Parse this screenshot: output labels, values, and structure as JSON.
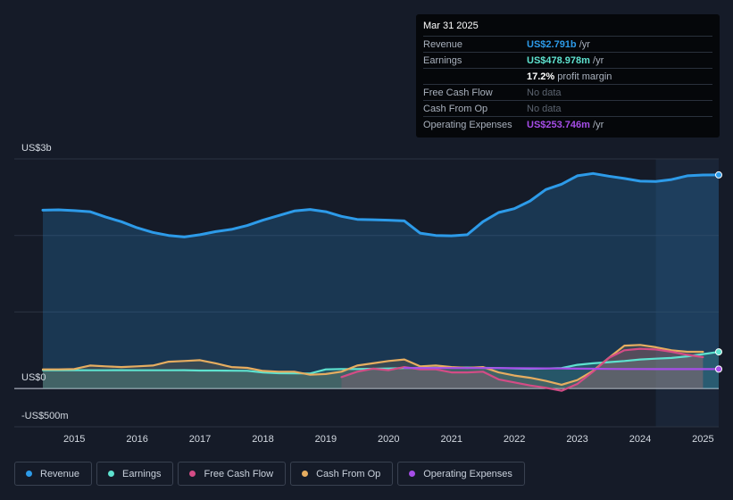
{
  "tooltip": {
    "date": "Mar 31 2025",
    "rows": [
      {
        "label": "Revenue",
        "value": "US$2.791b",
        "suffix": " /yr",
        "color": "#2d9be9"
      },
      {
        "label": "Earnings",
        "value": "US$478.978m",
        "suffix": " /yr",
        "color": "#5ee2cf"
      },
      {
        "label": "",
        "value": "17.2%",
        "suffix": " profit margin",
        "color": "#ffffff"
      },
      {
        "label": "Free Cash Flow",
        "value": "No data",
        "suffix": "",
        "color": "#5c6470"
      },
      {
        "label": "Cash From Op",
        "value": "No data",
        "suffix": "",
        "color": "#5c6470"
      },
      {
        "label": "Operating Expenses",
        "value": "US$253.746m",
        "suffix": " /yr",
        "color": "#a64de8"
      }
    ]
  },
  "legend": [
    {
      "label": "Revenue",
      "color": "#2d9be9"
    },
    {
      "label": "Earnings",
      "color": "#5ee2cf"
    },
    {
      "label": "Free Cash Flow",
      "color": "#d44c86"
    },
    {
      "label": "Cash From Op",
      "color": "#e6ad60"
    },
    {
      "label": "Operating Expenses",
      "color": "#a64de8"
    }
  ],
  "chart_data": {
    "type": "line",
    "title": "",
    "y_tick_labels": [
      "US$3b",
      "US$0",
      "-US$500m"
    ],
    "ylim": [
      -500,
      3000
    ],
    "xlim": [
      2014.5,
      2025.25
    ],
    "x_ticks": [
      "2015",
      "2016",
      "2017",
      "2018",
      "2019",
      "2020",
      "2021",
      "2022",
      "2023",
      "2024",
      "2025"
    ],
    "series": [
      {
        "name": "Revenue",
        "color": "#2d9be9",
        "fill": true,
        "x": [
          2014.5,
          2014.75,
          2015.0,
          2015.25,
          2015.5,
          2015.75,
          2016.0,
          2016.25,
          2016.5,
          2016.75,
          2017.0,
          2017.25,
          2017.5,
          2017.75,
          2018.0,
          2018.25,
          2018.5,
          2018.75,
          2019.0,
          2019.25,
          2019.5,
          2019.75,
          2020.0,
          2020.25,
          2020.5,
          2020.75,
          2021.0,
          2021.25,
          2021.5,
          2021.75,
          2022.0,
          2022.25,
          2022.5,
          2022.75,
          2023.0,
          2023.25,
          2023.5,
          2023.75,
          2024.0,
          2024.25,
          2024.5,
          2024.75,
          2025.0,
          2025.25
        ],
        "y": [
          2330,
          2335,
          2325,
          2310,
          2240,
          2180,
          2100,
          2040,
          2000,
          1980,
          2010,
          2050,
          2080,
          2130,
          2200,
          2260,
          2320,
          2340,
          2310,
          2250,
          2210,
          2205,
          2200,
          2190,
          2030,
          2000,
          1995,
          2010,
          2180,
          2300,
          2350,
          2450,
          2600,
          2670,
          2780,
          2810,
          2775,
          2745,
          2710,
          2705,
          2730,
          2780,
          2790,
          2791
        ]
      },
      {
        "name": "Earnings",
        "color": "#5ee2cf",
        "fill": true,
        "x": [
          2014.5,
          2014.75,
          2015.0,
          2015.25,
          2015.5,
          2015.75,
          2016.0,
          2016.25,
          2016.5,
          2016.75,
          2017.0,
          2017.25,
          2017.5,
          2017.75,
          2018.0,
          2018.25,
          2018.5,
          2018.75,
          2019.0,
          2019.25,
          2019.5,
          2019.75,
          2020.0,
          2020.25,
          2020.5,
          2020.75,
          2021.0,
          2021.25,
          2021.5,
          2021.75,
          2022.0,
          2022.25,
          2022.5,
          2022.75,
          2023.0,
          2023.25,
          2023.5,
          2023.75,
          2024.0,
          2024.25,
          2024.5,
          2024.75,
          2025.0,
          2025.25
        ],
        "y": [
          240,
          240,
          240,
          238,
          238,
          240,
          238,
          238,
          238,
          240,
          235,
          235,
          233,
          232,
          210,
          200,
          198,
          196,
          250,
          255,
          255,
          258,
          262,
          268,
          270,
          270,
          272,
          275,
          270,
          268,
          262,
          258,
          262,
          268,
          310,
          330,
          345,
          360,
          380,
          390,
          400,
          420,
          450,
          479
        ]
      },
      {
        "name": "Free Cash Flow",
        "color": "#d44c86",
        "fill": true,
        "x": [
          2019.25,
          2019.5,
          2019.75,
          2020.0,
          2020.25,
          2020.5,
          2020.75,
          2021.0,
          2021.25,
          2021.5,
          2021.75,
          2022.0,
          2022.25,
          2022.5,
          2022.75,
          2023.0,
          2023.25,
          2023.5,
          2023.75,
          2024.0,
          2024.25,
          2024.5,
          2024.75,
          2025.0
        ],
        "y": [
          150,
          220,
          260,
          240,
          280,
          250,
          250,
          210,
          210,
          220,
          120,
          80,
          40,
          10,
          -30,
          60,
          220,
          400,
          500,
          520,
          510,
          480,
          440,
          410
        ]
      },
      {
        "name": "Cash From Op",
        "color": "#e6ad60",
        "fill": true,
        "x": [
          2014.5,
          2014.75,
          2015.0,
          2015.25,
          2015.5,
          2015.75,
          2016.0,
          2016.25,
          2016.5,
          2016.75,
          2017.0,
          2017.25,
          2017.5,
          2017.75,
          2018.0,
          2018.25,
          2018.5,
          2018.75,
          2019.0,
          2019.25,
          2019.5,
          2019.75,
          2020.0,
          2020.25,
          2020.5,
          2020.75,
          2021.0,
          2021.25,
          2021.5,
          2021.75,
          2022.0,
          2022.25,
          2022.5,
          2022.75,
          2023.0,
          2023.25,
          2023.5,
          2023.75,
          2024.0,
          2024.25,
          2024.5,
          2024.75,
          2025.0
        ],
        "y": [
          250,
          250,
          255,
          300,
          290,
          280,
          290,
          300,
          350,
          360,
          370,
          330,
          280,
          270,
          230,
          220,
          220,
          180,
          190,
          220,
          300,
          330,
          360,
          380,
          290,
          300,
          280,
          270,
          280,
          210,
          170,
          140,
          100,
          50,
          110,
          230,
          400,
          560,
          570,
          540,
          500,
          480,
          480
        ]
      },
      {
        "name": "Operating Expenses",
        "color": "#a64de8",
        "fill": false,
        "x": [
          2020.25,
          2020.5,
          2020.75,
          2021.0,
          2021.25,
          2021.5,
          2021.75,
          2022.0,
          2022.25,
          2022.5,
          2022.75,
          2023.0,
          2023.25,
          2023.5,
          2023.75,
          2024.0,
          2024.25,
          2024.5,
          2024.75,
          2025.0,
          2025.25
        ],
        "y": [
          270,
          268,
          268,
          268,
          268,
          268,
          268,
          265,
          264,
          263,
          262,
          260,
          258,
          256,
          255,
          255,
          254,
          254,
          254,
          254,
          254
        ]
      }
    ]
  }
}
